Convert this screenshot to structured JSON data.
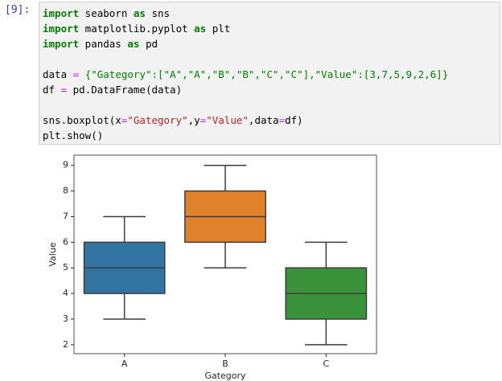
{
  "cell": {
    "prompt": "[9]:",
    "blocks": [
      [
        [
          {
            "text": "import",
            "color": "#008000",
            "bold": true
          },
          {
            "text": " seaborn ",
            "color": "#000000"
          },
          {
            "text": "as",
            "color": "#008000",
            "bold": true
          },
          {
            "text": " sns",
            "color": "#000000"
          }
        ],
        [
          {
            "text": "import",
            "color": "#008000",
            "bold": true
          },
          {
            "text": " matplotlib.pyplot ",
            "color": "#000000"
          },
          {
            "text": "as",
            "color": "#008000",
            "bold": true
          },
          {
            "text": " plt",
            "color": "#000000"
          }
        ],
        [
          {
            "text": "import",
            "color": "#008000",
            "bold": true
          },
          {
            "text": " pandas ",
            "color": "#000000"
          },
          {
            "text": "as",
            "color": "#008000",
            "bold": true
          },
          {
            "text": " pd",
            "color": "#000000"
          }
        ]
      ],
      [
        [
          {
            "text": "data",
            "color": "#000000"
          },
          {
            "text": " = ",
            "color": "#aa22ff"
          },
          {
            "text": "{\"Gategory\":[\"A\",\"A\",\"B\",\"B\",\"C\",\"C\"],\"Value\":[3,7,5,9,2,6]}",
            "color": "#008000"
          }
        ],
        [
          {
            "text": "df",
            "color": "#000000"
          },
          {
            "text": " = ",
            "color": "#aa22ff"
          },
          {
            "text": "pd.DataFrame(data)",
            "color": "#000000"
          }
        ]
      ],
      [
        [
          {
            "text": "sns.boxplot(x",
            "color": "#000000"
          },
          {
            "text": "=",
            "color": "#aa22ff"
          },
          {
            "text": "\"Gategory\"",
            "color": "#ba2121"
          },
          {
            "text": ",y",
            "color": "#000000"
          },
          {
            "text": "=",
            "color": "#aa22ff"
          },
          {
            "text": "\"Value\"",
            "color": "#ba2121"
          },
          {
            "text": ",data",
            "color": "#000000"
          },
          {
            "text": "=",
            "color": "#aa22ff"
          },
          {
            "text": "df)",
            "color": "#000000"
          }
        ],
        [
          {
            "text": "plt.show()",
            "color": "#000000"
          }
        ]
      ]
    ]
  },
  "chart_data": {
    "type": "box",
    "xlabel": "Gategory",
    "ylabel": "Value",
    "categories": [
      "A",
      "B",
      "C"
    ],
    "colors": [
      "#3274a1",
      "#e1812c",
      "#3a923a"
    ],
    "min": [
      3,
      5,
      2
    ],
    "q1": [
      4,
      6,
      3
    ],
    "median": [
      5,
      7,
      4
    ],
    "q3": [
      6,
      8,
      5
    ],
    "max": [
      7,
      9,
      6
    ],
    "ylim": [
      1.65,
      9.4
    ],
    "yticks": [
      2,
      3,
      4,
      5,
      6,
      7,
      8,
      9
    ]
  }
}
